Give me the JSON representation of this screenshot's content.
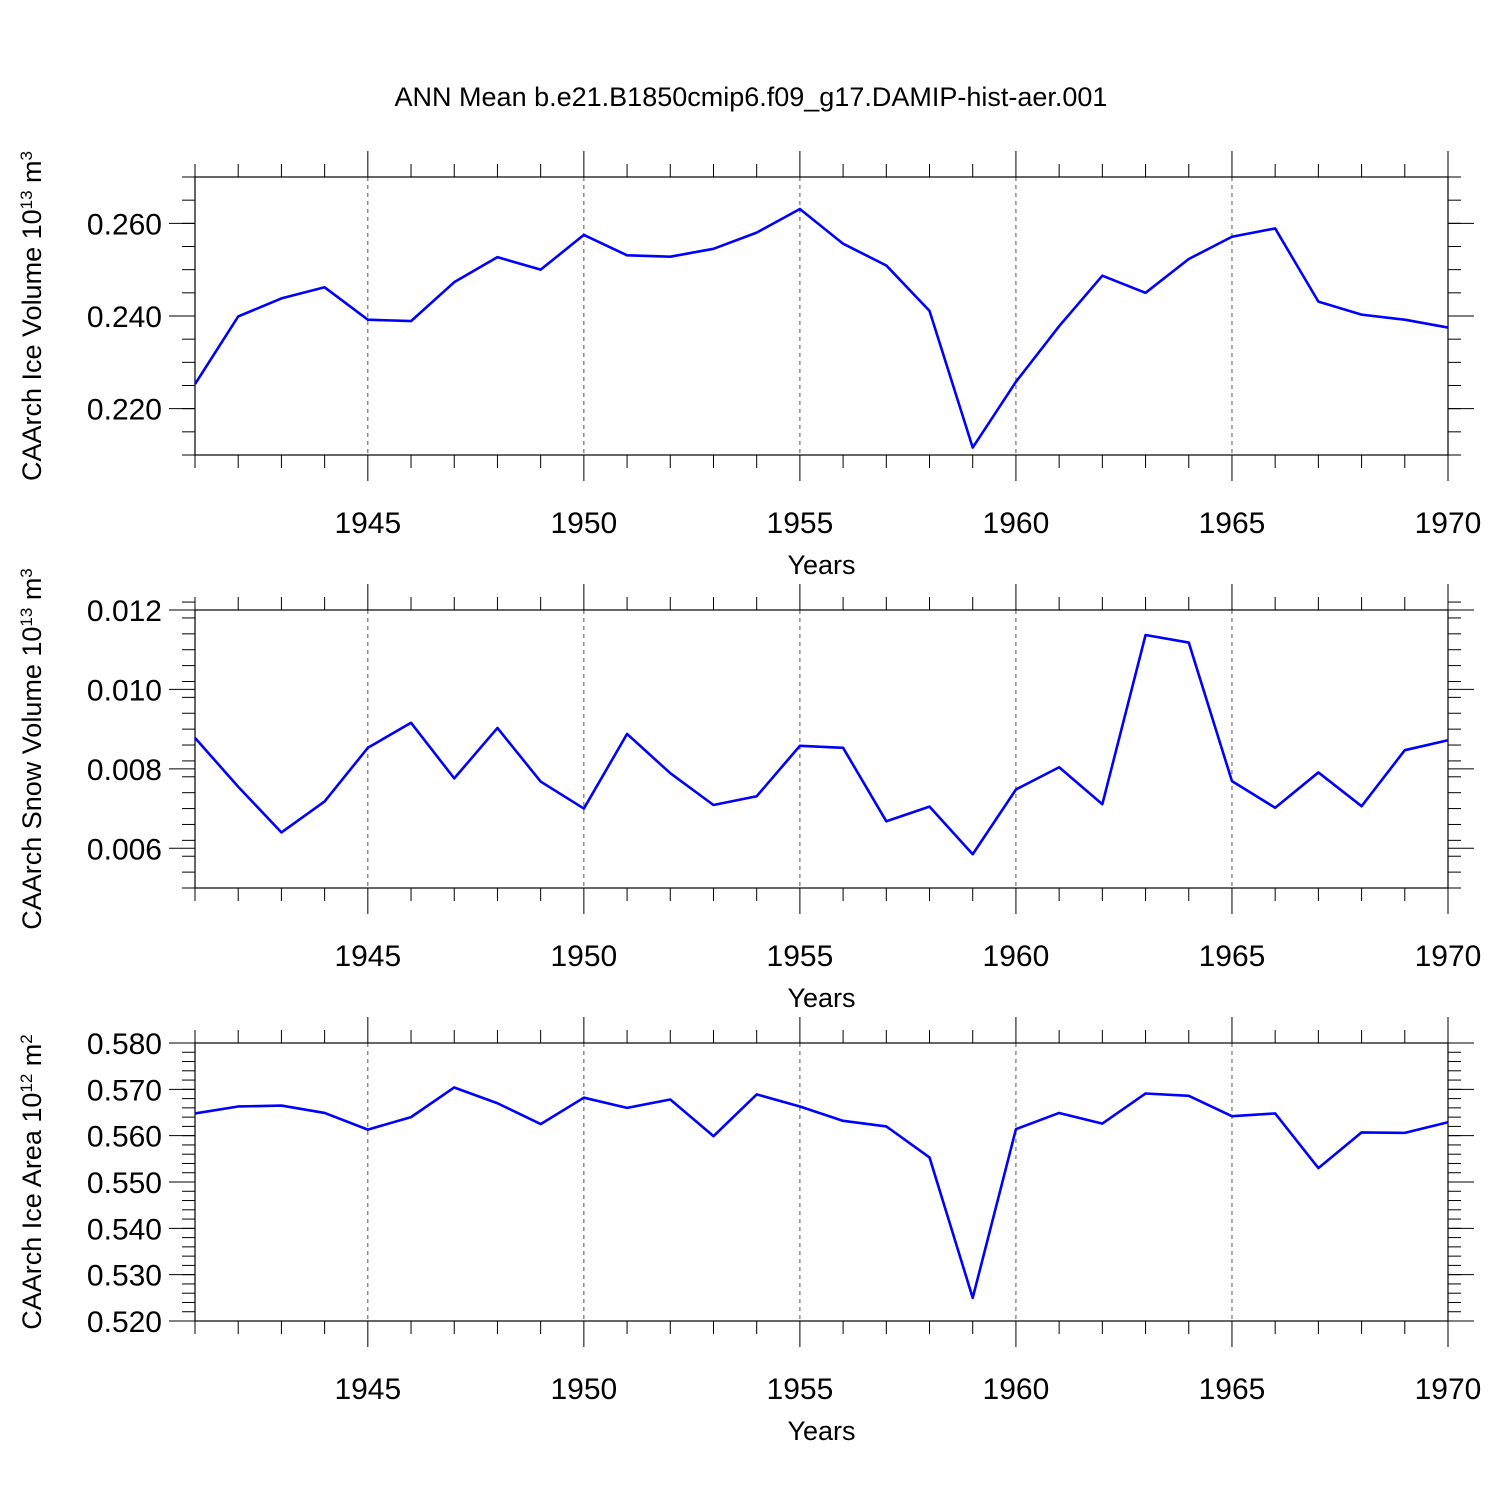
{
  "title": "ANN Mean b.e21.B1850cmip6.f09_g17.DAMIP-hist-aer.001",
  "colors": {
    "line": "#0000ff",
    "axis": "#000000",
    "grid": "#555555"
  },
  "chart_data": [
    {
      "type": "line",
      "ylabel": "CAArch Ice Volume 10",
      "ylabel_exp": "13",
      "ylabel_unit": " m",
      "ylabel_unit_exp": "3",
      "xlabel": "Years",
      "xlim": [
        1941,
        1970
      ],
      "ylim": [
        0.21,
        0.27
      ],
      "yticks": [
        0.22,
        0.24,
        0.26
      ],
      "ytick_labels": [
        "0.220",
        "0.240",
        "0.260"
      ],
      "yminor_step": 0.005,
      "xticks": [
        1945,
        1950,
        1955,
        1960,
        1965,
        1970
      ],
      "xtick_labels": [
        "1945",
        "1950",
        "1955",
        "1960",
        "1965",
        "1970"
      ],
      "grid": "dashed vertical at major x ticks",
      "series": [
        {
          "name": "CAArch Ice Volume",
          "x": [
            1941,
            1942,
            1943,
            1944,
            1945,
            1946,
            1947,
            1948,
            1949,
            1950,
            1951,
            1952,
            1953,
            1954,
            1955,
            1956,
            1957,
            1958,
            1959,
            1960,
            1961,
            1962,
            1963,
            1964,
            1965,
            1966,
            1967,
            1968,
            1969,
            1970
          ],
          "values": [
            0.2253,
            0.2399,
            0.2438,
            0.2462,
            0.2392,
            0.2389,
            0.2473,
            0.2527,
            0.25,
            0.2575,
            0.2531,
            0.2528,
            0.2545,
            0.258,
            0.2631,
            0.2556,
            0.2509,
            0.2411,
            0.2116,
            0.2258,
            0.2378,
            0.2487,
            0.245,
            0.2523,
            0.2571,
            0.2589,
            0.2431,
            0.2403,
            0.2392,
            0.2375
          ]
        }
      ]
    },
    {
      "type": "line",
      "ylabel": "CAArch Snow Volume 10",
      "ylabel_exp": "13",
      "ylabel_unit": " m",
      "ylabel_unit_exp": "3",
      "xlabel": "Years",
      "xlim": [
        1941,
        1970
      ],
      "ylim": [
        0.005,
        0.012
      ],
      "yticks": [
        0.006,
        0.008,
        0.01,
        0.012
      ],
      "ytick_labels": [
        "0.006",
        "0.008",
        "0.010",
        "0.012"
      ],
      "yminor_step": 0.0004,
      "xticks": [
        1945,
        1950,
        1955,
        1960,
        1965,
        1970
      ],
      "xtick_labels": [
        "1945",
        "1950",
        "1955",
        "1960",
        "1965",
        "1970"
      ],
      "grid": "dashed vertical at major x ticks",
      "series": [
        {
          "name": "CAArch Snow Volume",
          "x": [
            1941,
            1942,
            1943,
            1944,
            1945,
            1946,
            1947,
            1948,
            1949,
            1950,
            1951,
            1952,
            1953,
            1954,
            1955,
            1956,
            1957,
            1958,
            1959,
            1960,
            1961,
            1962,
            1963,
            1964,
            1965,
            1966,
            1967,
            1968,
            1969,
            1970
          ],
          "values": [
            0.00878,
            0.00755,
            0.0064,
            0.00718,
            0.00853,
            0.00916,
            0.00776,
            0.00903,
            0.00768,
            0.007,
            0.00888,
            0.00789,
            0.00709,
            0.00731,
            0.00858,
            0.00853,
            0.00668,
            0.00705,
            0.00585,
            0.00748,
            0.00804,
            0.00711,
            0.01137,
            0.01118,
            0.00769,
            0.00702,
            0.00791,
            0.00706,
            0.00847,
            0.00872
          ]
        }
      ]
    },
    {
      "type": "line",
      "ylabel": "CAArch Ice Area 10",
      "ylabel_exp": "12",
      "ylabel_unit": " m",
      "ylabel_unit_exp": "2",
      "xlabel": "Years",
      "xlim": [
        1941,
        1970
      ],
      "ylim": [
        0.52,
        0.58
      ],
      "yticks": [
        0.52,
        0.53,
        0.54,
        0.55,
        0.56,
        0.57,
        0.58
      ],
      "ytick_labels": [
        "0.520",
        "0.530",
        "0.540",
        "0.550",
        "0.560",
        "0.570",
        "0.580"
      ],
      "yminor_step": 0.002,
      "xticks": [
        1945,
        1950,
        1955,
        1960,
        1965,
        1970
      ],
      "xtick_labels": [
        "1945",
        "1950",
        "1955",
        "1960",
        "1965",
        "1970"
      ],
      "grid": "dashed vertical at major x ticks",
      "series": [
        {
          "name": "CAArch Ice Area",
          "x": [
            1941,
            1942,
            1943,
            1944,
            1945,
            1946,
            1947,
            1948,
            1949,
            1950,
            1951,
            1952,
            1953,
            1954,
            1955,
            1956,
            1957,
            1958,
            1959,
            1960,
            1961,
            1962,
            1963,
            1964,
            1965,
            1966,
            1967,
            1968,
            1969,
            1970
          ],
          "values": [
            0.5648,
            0.5663,
            0.5665,
            0.5649,
            0.5613,
            0.564,
            0.5704,
            0.567,
            0.5625,
            0.5682,
            0.566,
            0.5678,
            0.5599,
            0.5689,
            0.5663,
            0.5632,
            0.562,
            0.5553,
            0.525,
            0.5614,
            0.5649,
            0.5626,
            0.5691,
            0.5686,
            0.5642,
            0.5648,
            0.553,
            0.5607,
            0.5606,
            0.5629
          ]
        }
      ]
    }
  ]
}
